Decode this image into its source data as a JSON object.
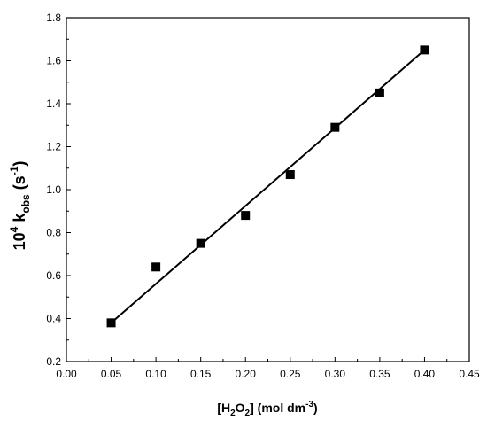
{
  "chart_data": {
    "type": "scatter",
    "xlabel": {
      "prefix": "[H",
      "sub1": "2",
      "mid": "O",
      "sub2": "2",
      "suffix": "] (mol dm",
      "sup": "-3",
      "end": ")"
    },
    "ylabel": {
      "prefix": "10",
      "sup": "4",
      "mid": " k",
      "sub": "obs",
      "suffix": " (s",
      "sup2": "-1",
      "end": ")"
    },
    "xlim": [
      0.0,
      0.45
    ],
    "ylim": [
      0.2,
      1.8
    ],
    "xticks": [
      "0.00",
      "0.05",
      "0.10",
      "0.15",
      "0.20",
      "0.25",
      "0.30",
      "0.35",
      "0.40",
      "0.45"
    ],
    "yticks": [
      "0.2",
      "0.4",
      "0.6",
      "0.8",
      "1.0",
      "1.2",
      "1.4",
      "1.6",
      "1.8"
    ],
    "series": [
      {
        "marker": "square",
        "color": "#000000",
        "points": [
          {
            "x": 0.05,
            "y": 0.38
          },
          {
            "x": 0.1,
            "y": 0.64
          },
          {
            "x": 0.15,
            "y": 0.75
          },
          {
            "x": 0.2,
            "y": 0.88
          },
          {
            "x": 0.25,
            "y": 1.07
          },
          {
            "x": 0.3,
            "y": 1.29
          },
          {
            "x": 0.35,
            "y": 1.45
          },
          {
            "x": 0.4,
            "y": 1.65
          }
        ]
      }
    ],
    "fit_line": {
      "x": [
        0.05,
        0.4
      ],
      "y": [
        0.38,
        1.65
      ],
      "color": "#000000"
    },
    "grid": false,
    "legend": "none"
  }
}
